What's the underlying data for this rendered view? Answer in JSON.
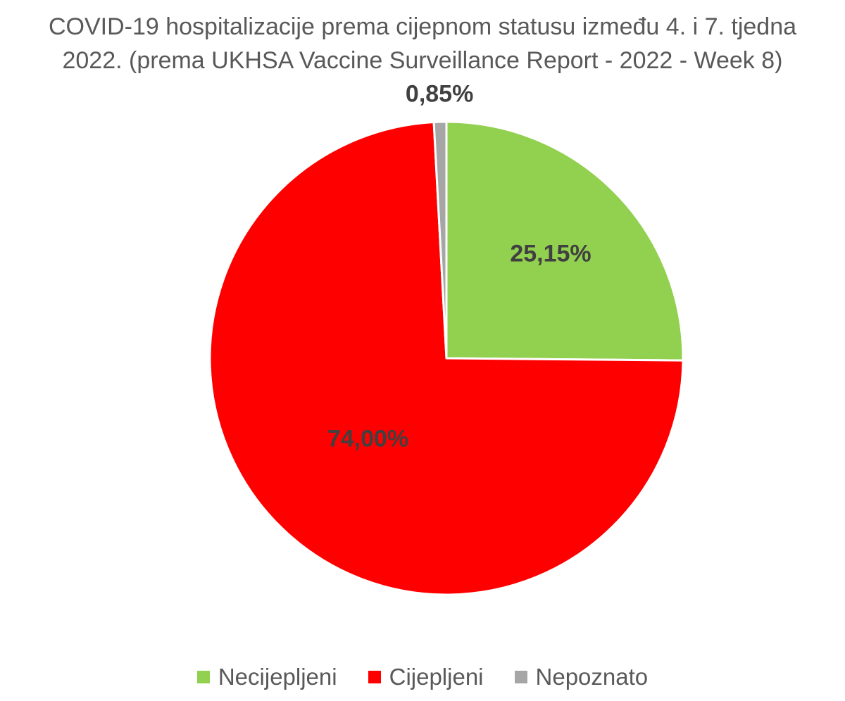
{
  "chart_data": {
    "type": "pie",
    "title_lines": [
      "COVID-19 hospitalizacije prema cijepnom statusu između 4. i 7. tjedna",
      "2022. (prema UKHSA Vaccine Surveillance Report - 2022 - Week 8)"
    ],
    "start_angle_deg": 0,
    "direction": "clockwise",
    "legend_position": "bottom",
    "slices": [
      {
        "name": "Necijepljeni",
        "value": 25.15,
        "label": "25,15%",
        "color": "#92D050"
      },
      {
        "name": "Cijepljeni",
        "value": 74.0,
        "label": "74,00%",
        "color": "#FF0000"
      },
      {
        "name": "Nepoznato",
        "value": 0.85,
        "label": "0,85%",
        "color": "#A6A6A6"
      }
    ]
  }
}
